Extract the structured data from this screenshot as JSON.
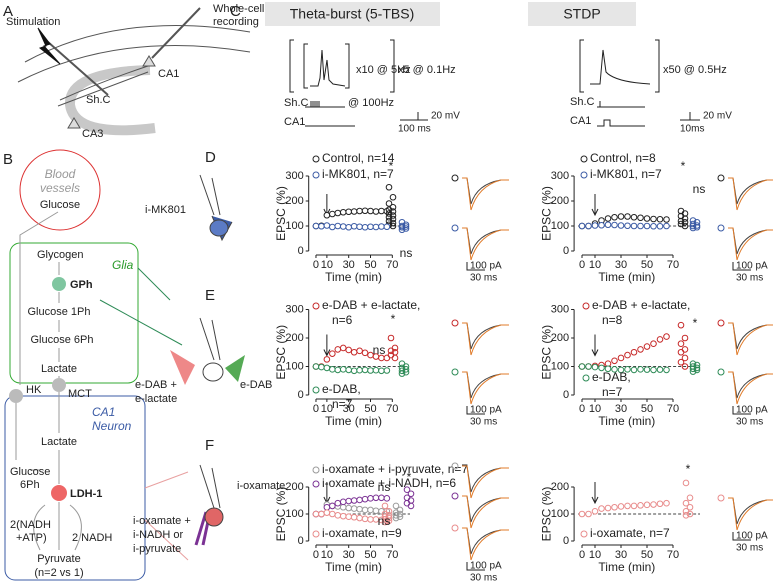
{
  "figure": {
    "panel_labels": [
      "A",
      "B",
      "C",
      "D",
      "E",
      "F"
    ],
    "a": {
      "stimulation": "Stimulation",
      "recording": [
        "Whole-cell",
        "recording"
      ],
      "ca1": "CA1",
      "shc": "Sh.C",
      "ca3": "CA3"
    },
    "b": {
      "blood": [
        "Blood",
        "vessels"
      ],
      "glucose": "Glucose",
      "glycogen": "Glycogen",
      "glia": "Glia",
      "gph": "GPh",
      "g1ph": "Glucose 1Ph",
      "g6ph": "Glucose 6Ph",
      "lactate": "Lactate",
      "mct": "MCT",
      "hk": "HK",
      "neuron": [
        "CA1",
        "Neuron"
      ],
      "n_lactate": "Lactate",
      "n_g6ph": [
        "Glucose",
        "6Ph"
      ],
      "ldh": "LDH-1",
      "nadh_atp": [
        "2(NADH",
        "+ATP)"
      ],
      "nadh": "2 NADH",
      "pyruvate": "Pyruvate",
      "ratio": "(n=2 vs 1)"
    },
    "c": {
      "tbs": {
        "title": "Theta-burst (5-TBS)",
        "rep1": "x10 @ 5Hz",
        "rep2": "x5 @ 0.1Hz",
        "shc": "Sh.C",
        "freq": "@ 100Hz",
        "ca1": "CA1",
        "v": "20 mV",
        "t": "100 ms"
      },
      "stdp": {
        "title": "STDP",
        "rep": "x50 @ 0.5Hz",
        "shc": "Sh.C",
        "ca1": "CA1",
        "v": "20 mV",
        "t": "10ms"
      }
    },
    "drugs": {
      "d": "i-MK801",
      "e1": [
        "e-DAB +",
        "e-lactate"
      ],
      "e2": "e-DAB",
      "f1": "i-oxamate",
      "f2": [
        "i-oxamate +",
        "i-NADH or",
        "i-pyruvate"
      ]
    }
  },
  "chart_data": [
    {
      "type": "scatter",
      "xlabel": "Time (min)",
      "ylabel": "EPSC (%)",
      "x": [
        0,
        5,
        10,
        15,
        20,
        25,
        30,
        35,
        40,
        45,
        50,
        55,
        60,
        65
      ],
      "xlim": [
        -3,
        72
      ],
      "xticks": [
        0,
        10,
        30,
        50,
        70
      ],
      "ylim": [
        0,
        300
      ],
      "yticks": [
        0,
        100,
        200,
        300
      ],
      "reference_line": 100,
      "stimulus_time": 10,
      "series": [
        {
          "name": "Control, n=14",
          "color": "#222222",
          "values": [
            100,
            101,
            143,
            148,
            152,
            155,
            157,
            158,
            160,
            161,
            160,
            158,
            160,
            159
          ],
          "cells": [
            255,
            215,
            190,
            175,
            165,
            158,
            150,
            142,
            135,
            128,
            120,
            112,
            105,
            100
          ]
        },
        {
          "name": "i-MK801, n=7",
          "color": "#3b5ba5",
          "values": [
            100,
            99,
            102,
            96,
            100,
            98,
            95,
            99,
            97,
            95,
            97,
            96,
            98,
            97
          ],
          "cells": [
            115,
            105,
            100,
            98,
            95,
            90,
            85
          ]
        }
      ],
      "annotations": [
        "*",
        "ns"
      ],
      "scale_bar": [
        "100 pA",
        "30 ms"
      ]
    },
    {
      "type": "scatter",
      "xlabel": "Time (min)",
      "ylabel": "EPSC (%)",
      "x": [
        0,
        5,
        10,
        15,
        20,
        25,
        30,
        35,
        40,
        45,
        50,
        55,
        60,
        65
      ],
      "xlim": [
        -3,
        72
      ],
      "xticks": [
        0,
        10,
        30,
        50,
        70
      ],
      "ylim": [
        0,
        300
      ],
      "yticks": [
        0,
        100,
        200,
        300
      ],
      "reference_line": 100,
      "stimulus_time": 10,
      "series": [
        {
          "name": "Control, n=8",
          "color": "#222222",
          "values": [
            100,
            100,
            110,
            122,
            130,
            135,
            138,
            138,
            135,
            133,
            130,
            128,
            127,
            126
          ],
          "cells": [
            160,
            150,
            140,
            130,
            120,
            115,
            108,
            100
          ]
        },
        {
          "name": "i-MK801, n=7",
          "color": "#3b5ba5",
          "values": [
            100,
            100,
            102,
            103,
            105,
            104,
            102,
            101,
            100,
            100,
            100,
            99,
            99,
            100
          ],
          "cells": [
            122,
            115,
            108,
            102,
            100,
            95,
            92
          ]
        }
      ],
      "annotations": [
        "*",
        "ns"
      ],
      "scale_bar": [
        "100 pA",
        "30 ms"
      ]
    },
    {
      "type": "scatter",
      "xlabel": "Time (min)",
      "ylabel": "EPSC (%)",
      "x": [
        0,
        5,
        10,
        15,
        20,
        25,
        30,
        35,
        40,
        45,
        50,
        55,
        60,
        65
      ],
      "xlim": [
        -3,
        72
      ],
      "xticks": [
        0,
        10,
        30,
        50,
        70
      ],
      "ylim": [
        0,
        300
      ],
      "yticks": [
        0,
        100,
        200,
        300
      ],
      "reference_line": 100,
      "stimulus_time": 10,
      "series": [
        {
          "name": "e-DAB + e-lactate, n=6",
          "color": "#c62828",
          "values": [
            100,
            100,
            125,
            145,
            160,
            165,
            158,
            150,
            155,
            148,
            140,
            135,
            130,
            130
          ],
          "cells": [
            200,
            165,
            155,
            150,
            140,
            130
          ]
        },
        {
          "name": "e-DAB, n=7",
          "color": "#2e8b57",
          "values": [
            100,
            98,
            95,
            90,
            88,
            90,
            88,
            85,
            87,
            88,
            86,
            87,
            85,
            86
          ],
          "cells": [
            110,
            100,
            95,
            90,
            85,
            80,
            75
          ]
        }
      ],
      "annotations": [
        "*",
        "ns"
      ],
      "scale_bar": [
        "100 pA",
        "30 ms"
      ]
    },
    {
      "type": "scatter",
      "xlabel": "Time (min)",
      "ylabel": "EPSC (%)",
      "x": [
        0,
        5,
        10,
        15,
        20,
        25,
        30,
        35,
        40,
        45,
        50,
        55,
        60,
        65
      ],
      "xlim": [
        -3,
        72
      ],
      "xticks": [
        0,
        10,
        30,
        50,
        70
      ],
      "ylim": [
        0,
        300
      ],
      "yticks": [
        0,
        100,
        200,
        300
      ],
      "reference_line": 100,
      "stimulus_time": 10,
      "series": [
        {
          "name": "e-DAB + e-lactate, n=8",
          "color": "#c62828",
          "values": [
            100,
            100,
            102,
            105,
            110,
            120,
            130,
            140,
            150,
            160,
            170,
            180,
            195,
            205
          ],
          "cells": [
            245,
            200,
            180,
            160,
            150,
            130,
            115,
            100
          ]
        },
        {
          "name": "e-DAB, n=7",
          "color": "#2e8b57",
          "values": [
            100,
            100,
            98,
            95,
            92,
            90,
            88,
            90,
            88,
            90,
            89,
            88,
            89,
            88
          ],
          "cells": [
            110,
            105,
            100,
            95,
            92,
            88,
            82
          ]
        }
      ],
      "annotations": [
        "*"
      ],
      "scale_bar": [
        "100 pA",
        "30 ms"
      ]
    },
    {
      "type": "scatter",
      "xlabel": "Time (min)",
      "ylabel": "EPSC (%)",
      "x": [
        0,
        5,
        10,
        15,
        20,
        25,
        30,
        35,
        40,
        45,
        50,
        55,
        60,
        65
      ],
      "xlim": [
        -3,
        72
      ],
      "xticks": [
        0,
        10,
        30,
        50,
        70
      ],
      "ylim": [
        0,
        200
      ],
      "yticks": [
        0,
        100,
        200
      ],
      "reference_line": 100,
      "stimulus_time": 10,
      "series": [
        {
          "name": "i-oxamate + i-pyruvate, n=7",
          "color": "#9a9a9a",
          "values": [
            100,
            100,
            135,
            130,
            128,
            125,
            122,
            120,
            118,
            115,
            115,
            112,
            110,
            110
          ],
          "cells": [
            130,
            115,
            105,
            100,
            95,
            90,
            85
          ]
        },
        {
          "name": "i-oxamate + i-NADH, n=6",
          "color": "#7b3294",
          "values": [
            100,
            100,
            125,
            130,
            140,
            145,
            148,
            150,
            152,
            155,
            158,
            160,
            160,
            158
          ],
          "cells": [
            190,
            175,
            160,
            150,
            140,
            130
          ]
        },
        {
          "name": "i-oxamate, n=9",
          "color": "#e88b8b",
          "values": [
            100,
            100,
            105,
            100,
            95,
            92,
            90,
            88,
            85,
            82,
            80,
            80,
            78,
            75
          ],
          "cells": [
            130,
            110,
            100,
            95,
            90,
            85,
            80,
            75,
            70
          ]
        }
      ],
      "annotations": [
        "ns",
        "*",
        "ns"
      ],
      "scale_bar": [
        "100 pA",
        "30 ms"
      ]
    },
    {
      "type": "scatter",
      "xlabel": "Time (min)",
      "ylabel": "EPSC (%)",
      "x": [
        0,
        5,
        10,
        15,
        20,
        25,
        30,
        35,
        40,
        45,
        50,
        55,
        60,
        65
      ],
      "xlim": [
        -3,
        72
      ],
      "xticks": [
        0,
        10,
        30,
        50,
        70
      ],
      "ylim": [
        0,
        200
      ],
      "yticks": [
        0,
        100,
        200
      ],
      "reference_line": 100,
      "stimulus_time": 10,
      "series": [
        {
          "name": "i-oxamate, n=7",
          "color": "#e88b8b",
          "values": [
            100,
            100,
            110,
            120,
            122,
            125,
            128,
            130,
            130,
            132,
            134,
            135,
            138,
            140
          ],
          "cells": [
            215,
            160,
            140,
            125,
            110,
            100,
            95
          ]
        }
      ],
      "annotations": [
        "*"
      ],
      "scale_bar": [
        "100 pA",
        "30 ms"
      ]
    }
  ]
}
